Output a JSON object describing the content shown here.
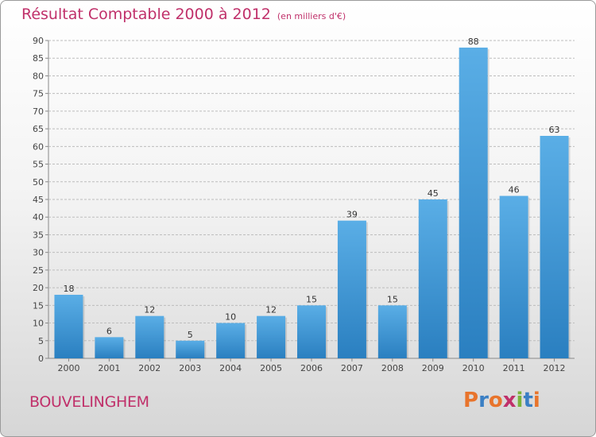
{
  "header": {
    "title": "Résultat Comptable 2000 à 2012",
    "subtitle": "(en milliers d'€)"
  },
  "footer": {
    "commune": "BOUVELINGHEM",
    "logo_text": "Proxiti",
    "logo_colors": [
      "#e8742c",
      "#3a7fc4",
      "#e8742c",
      "#c0306a",
      "#7ab33a",
      "#3a7fc4",
      "#e8742c"
    ]
  },
  "colors": {
    "bar_top": "#5aaee6",
    "bar_bottom": "#2a7fc0",
    "grid": "#bdbdbd"
  },
  "chart_data": {
    "type": "bar",
    "categories": [
      "2000",
      "2001",
      "2002",
      "2003",
      "2004",
      "2005",
      "2006",
      "2007",
      "2008",
      "2009",
      "2010",
      "2011",
      "2012"
    ],
    "values": [
      18,
      6,
      12,
      5,
      10,
      12,
      15,
      39,
      15,
      45,
      88,
      46,
      63
    ],
    "ylim": [
      0,
      90
    ],
    "yticks": [
      0,
      5,
      10,
      15,
      20,
      25,
      30,
      35,
      40,
      45,
      50,
      55,
      60,
      65,
      70,
      75,
      80,
      85,
      90
    ],
    "grid": true,
    "data_labels": true
  }
}
